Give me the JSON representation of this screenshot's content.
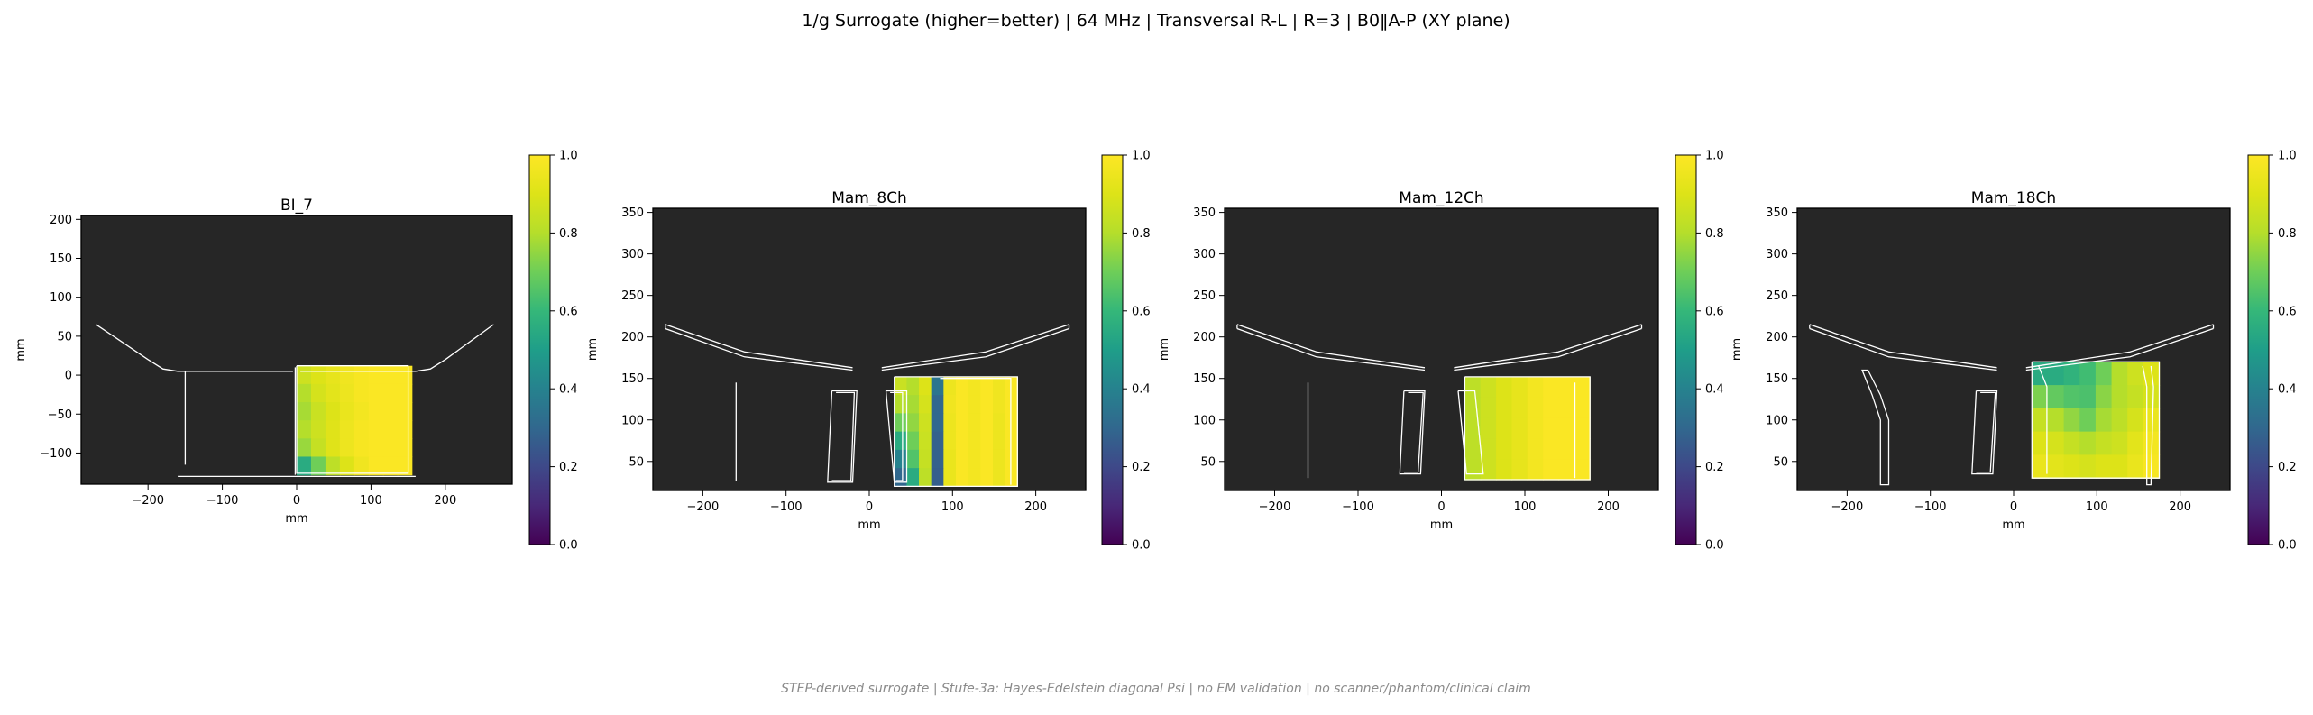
{
  "figure": {
    "suptitle": "1/g Surrogate (higher=better) | 64 MHz | Transversal R-L | R=3 | B0‖A-P (XY plane)",
    "footer": "STEP-derived surrogate | Stufe-3a: Hayes-Edelstein diagonal Psi | no EM validation | no scanner/phantom/clinical claim",
    "colormap": "viridis",
    "background_color": "#262626",
    "outline_color": "#ffffff"
  },
  "chart_data": [
    {
      "type": "heatmap",
      "title": "BI_7",
      "xlabel": "mm",
      "ylabel": "mm",
      "xlim": [
        -290,
        290
      ],
      "ylim": [
        -140,
        205
      ],
      "xticks": [
        -200,
        -100,
        0,
        100,
        200
      ],
      "yticks": [
        -100,
        -50,
        0,
        50,
        100,
        150,
        200
      ],
      "colorbar": {
        "min": 0.0,
        "max": 1.0,
        "ticks": [
          "0.0",
          "0.2",
          "0.4",
          "0.6",
          "0.8",
          "1.0"
        ]
      },
      "heat_region": {
        "x": [
          0,
          155
        ],
        "y": [
          -128,
          12
        ]
      },
      "heat_values": [
        [
          0.86,
          0.9,
          0.93,
          0.96,
          0.98,
          0.99,
          0.99,
          0.99
        ],
        [
          0.8,
          0.88,
          0.92,
          0.95,
          0.98,
          0.99,
          0.99,
          0.99
        ],
        [
          0.78,
          0.85,
          0.9,
          0.94,
          0.97,
          0.99,
          0.99,
          0.99
        ],
        [
          0.8,
          0.86,
          0.91,
          0.95,
          0.98,
          0.99,
          0.99,
          0.99
        ],
        [
          0.76,
          0.84,
          0.91,
          0.95,
          0.98,
          0.99,
          0.99,
          0.99
        ],
        [
          0.55,
          0.7,
          0.82,
          0.9,
          0.96,
          0.99,
          0.99,
          0.99
        ]
      ],
      "outlines": [
        [
          [
            -270,
            65
          ],
          [
            -200,
            20
          ],
          [
            -180,
            8
          ],
          [
            -160,
            5
          ],
          [
            -5,
            5
          ]
        ],
        [
          [
            5,
            5
          ],
          [
            160,
            5
          ],
          [
            180,
            8
          ],
          [
            200,
            20
          ],
          [
            265,
            65
          ]
        ],
        [
          [
            -150,
            5
          ],
          [
            -150,
            -115
          ]
        ],
        [
          [
            -160,
            -130
          ],
          [
            160,
            -130
          ]
        ],
        [
          [
            -2,
            10
          ],
          [
            -2,
            -128
          ]
        ],
        [
          [
            0,
            12
          ],
          [
            150,
            12
          ],
          [
            150,
            -126
          ],
          [
            0,
            -126
          ],
          [
            0,
            12
          ]
        ]
      ]
    },
    {
      "type": "heatmap",
      "title": "Mam_8Ch",
      "xlabel": "mm",
      "ylabel": "mm",
      "xlim": [
        -260,
        260
      ],
      "ylim": [
        15,
        355
      ],
      "xticks": [
        -200,
        -100,
        0,
        100,
        200
      ],
      "yticks": [
        50,
        100,
        150,
        200,
        250,
        300,
        350
      ],
      "colorbar": {
        "min": 0.0,
        "max": 1.0,
        "ticks": [
          "0.0",
          "0.2",
          "0.4",
          "0.6",
          "0.8",
          "1.0"
        ]
      },
      "heat_region": {
        "x": [
          30,
          178
        ],
        "y": [
          20,
          152
        ]
      },
      "heat_values": [
        [
          0.85,
          0.8,
          0.9,
          0.35,
          0.95,
          0.99,
          0.97,
          0.99,
          0.96,
          0.99
        ],
        [
          0.8,
          0.78,
          0.88,
          0.3,
          0.96,
          0.99,
          0.97,
          0.99,
          0.96,
          0.99
        ],
        [
          0.7,
          0.75,
          0.86,
          0.3,
          0.95,
          0.99,
          0.97,
          0.99,
          0.95,
          0.99
        ],
        [
          0.55,
          0.7,
          0.85,
          0.28,
          0.95,
          0.99,
          0.97,
          0.99,
          0.95,
          0.99
        ],
        [
          0.4,
          0.65,
          0.84,
          0.28,
          0.94,
          0.99,
          0.97,
          0.99,
          0.95,
          0.99
        ],
        [
          0.3,
          0.55,
          0.82,
          0.27,
          0.94,
          0.99,
          0.97,
          0.99,
          0.95,
          0.99
        ]
      ],
      "outlines": [
        [
          [
            -245,
            215
          ],
          [
            -150,
            182
          ],
          [
            -20,
            163
          ]
        ],
        [
          [
            -245,
            210
          ],
          [
            -150,
            176
          ],
          [
            -20,
            160
          ]
        ],
        [
          [
            -245,
            215
          ],
          [
            -245,
            210
          ]
        ],
        [
          [
            15,
            163
          ],
          [
            140,
            182
          ],
          [
            240,
            215
          ]
        ],
        [
          [
            15,
            160
          ],
          [
            140,
            176
          ],
          [
            240,
            210
          ]
        ],
        [
          [
            240,
            215
          ],
          [
            240,
            210
          ]
        ],
        [
          [
            -160,
            145
          ],
          [
            -160,
            27
          ]
        ],
        [
          [
            -45,
            135
          ],
          [
            -15,
            135
          ],
          [
            -20,
            25
          ],
          [
            -50,
            25
          ],
          [
            -45,
            135
          ]
        ],
        [
          [
            -40,
            133
          ],
          [
            -18,
            133
          ],
          [
            -22,
            27
          ],
          [
            -45,
            27
          ]
        ],
        [
          [
            20,
            135
          ],
          [
            45,
            135
          ],
          [
            45,
            25
          ],
          [
            30,
            25
          ],
          [
            20,
            135
          ]
        ],
        [
          [
            25,
            133
          ],
          [
            40,
            133
          ],
          [
            40,
            27
          ],
          [
            32,
            27
          ]
        ],
        [
          [
            30,
            152
          ],
          [
            178,
            152
          ],
          [
            178,
            20
          ],
          [
            30,
            20
          ],
          [
            30,
            152
          ]
        ],
        [
          [
            85,
            150
          ],
          [
            170,
            150
          ],
          [
            170,
            22
          ]
        ]
      ]
    },
    {
      "type": "heatmap",
      "title": "Mam_12Ch",
      "xlabel": "mm",
      "ylabel": "mm",
      "xlim": [
        -260,
        260
      ],
      "ylim": [
        15,
        355
      ],
      "xticks": [
        -200,
        -100,
        0,
        100,
        200
      ],
      "yticks": [
        50,
        100,
        150,
        200,
        250,
        300,
        350
      ],
      "colorbar": {
        "min": 0.0,
        "max": 1.0,
        "ticks": [
          "0.0",
          "0.2",
          "0.4",
          "0.6",
          "0.8",
          "1.0"
        ]
      },
      "heat_region": {
        "x": [
          28,
          178
        ],
        "y": [
          28,
          152
        ]
      },
      "heat_values": [
        [
          0.82,
          0.86,
          0.9,
          0.93,
          0.97,
          0.99,
          0.99,
          0.99
        ],
        [
          0.82,
          0.86,
          0.9,
          0.93,
          0.97,
          0.99,
          0.99,
          0.99
        ],
        [
          0.82,
          0.86,
          0.9,
          0.93,
          0.97,
          0.99,
          0.99,
          0.99
        ],
        [
          0.82,
          0.86,
          0.9,
          0.93,
          0.97,
          0.99,
          0.99,
          0.99
        ],
        [
          0.82,
          0.86,
          0.9,
          0.93,
          0.97,
          0.99,
          0.99,
          0.99
        ]
      ],
      "outlines": [
        [
          [
            -245,
            215
          ],
          [
            -150,
            182
          ],
          [
            -20,
            163
          ]
        ],
        [
          [
            -245,
            210
          ],
          [
            -150,
            176
          ],
          [
            -20,
            160
          ]
        ],
        [
          [
            -245,
            215
          ],
          [
            -245,
            210
          ]
        ],
        [
          [
            15,
            163
          ],
          [
            140,
            182
          ],
          [
            240,
            215
          ]
        ],
        [
          [
            15,
            160
          ],
          [
            140,
            176
          ],
          [
            240,
            210
          ]
        ],
        [
          [
            240,
            215
          ],
          [
            240,
            210
          ]
        ],
        [
          [
            -160,
            145
          ],
          [
            -160,
            30
          ]
        ],
        [
          [
            -45,
            135
          ],
          [
            -20,
            135
          ],
          [
            -25,
            35
          ],
          [
            -50,
            35
          ],
          [
            -45,
            135
          ]
        ],
        [
          [
            -40,
            133
          ],
          [
            -22,
            133
          ],
          [
            -28,
            37
          ],
          [
            -45,
            37
          ]
        ],
        [
          [
            20,
            135
          ],
          [
            40,
            135
          ],
          [
            50,
            35
          ],
          [
            30,
            35
          ],
          [
            20,
            135
          ]
        ],
        [
          [
            28,
            152
          ],
          [
            178,
            152
          ],
          [
            178,
            28
          ],
          [
            28,
            28
          ],
          [
            28,
            152
          ]
        ],
        [
          [
            160,
            145
          ],
          [
            160,
            30
          ]
        ]
      ]
    },
    {
      "type": "heatmap",
      "title": "Mam_18Ch",
      "xlabel": "mm",
      "ylabel": "mm",
      "xlim": [
        -260,
        260
      ],
      "ylim": [
        15,
        355
      ],
      "xticks": [
        -200,
        -100,
        0,
        100,
        200
      ],
      "yticks": [
        50,
        100,
        150,
        200,
        250,
        300,
        350
      ],
      "colorbar": {
        "min": 0.0,
        "max": 1.0,
        "ticks": [
          "0.0",
          "0.2",
          "0.4",
          "0.6",
          "0.8",
          "1.0"
        ]
      },
      "heat_region": {
        "x": [
          22,
          175
        ],
        "y": [
          30,
          170
        ]
      },
      "heat_values": [
        [
          0.55,
          0.55,
          0.58,
          0.62,
          0.7,
          0.8,
          0.86,
          0.9
        ],
        [
          0.72,
          0.68,
          0.65,
          0.64,
          0.74,
          0.8,
          0.84,
          0.88
        ],
        [
          0.84,
          0.8,
          0.75,
          0.7,
          0.78,
          0.82,
          0.88,
          0.94
        ],
        [
          0.9,
          0.88,
          0.84,
          0.8,
          0.84,
          0.86,
          0.92,
          0.97
        ],
        [
          0.94,
          0.92,
          0.9,
          0.88,
          0.9,
          0.9,
          0.94,
          0.98
        ]
      ],
      "outlines": [
        [
          [
            -245,
            215
          ],
          [
            -150,
            182
          ],
          [
            -20,
            163
          ]
        ],
        [
          [
            -245,
            210
          ],
          [
            -150,
            176
          ],
          [
            -20,
            160
          ]
        ],
        [
          [
            -245,
            215
          ],
          [
            -245,
            210
          ]
        ],
        [
          [
            15,
            163
          ],
          [
            140,
            182
          ],
          [
            240,
            215
          ]
        ],
        [
          [
            15,
            160
          ],
          [
            140,
            176
          ],
          [
            240,
            210
          ]
        ],
        [
          [
            240,
            215
          ],
          [
            240,
            210
          ]
        ],
        [
          [
            -175,
            160
          ],
          [
            -160,
            130
          ],
          [
            -150,
            100
          ],
          [
            -150,
            22
          ],
          [
            -160,
            22
          ],
          [
            -160,
            100
          ],
          [
            -170,
            130
          ],
          [
            -182,
            160
          ],
          [
            -175,
            160
          ]
        ],
        [
          [
            -45,
            135
          ],
          [
            -20,
            135
          ],
          [
            -25,
            35
          ],
          [
            -50,
            35
          ],
          [
            -45,
            135
          ]
        ],
        [
          [
            -40,
            133
          ],
          [
            -22,
            133
          ],
          [
            -28,
            37
          ],
          [
            -45,
            37
          ]
        ],
        [
          [
            22,
            170
          ],
          [
            175,
            170
          ],
          [
            175,
            30
          ],
          [
            22,
            30
          ],
          [
            22,
            170
          ]
        ],
        [
          [
            30,
            165
          ],
          [
            40,
            140
          ],
          [
            40,
            35
          ]
        ],
        [
          [
            155,
            165
          ],
          [
            160,
            140
          ],
          [
            160,
            22
          ],
          [
            165,
            22
          ],
          [
            168,
            140
          ],
          [
            165,
            165
          ]
        ]
      ]
    }
  ]
}
